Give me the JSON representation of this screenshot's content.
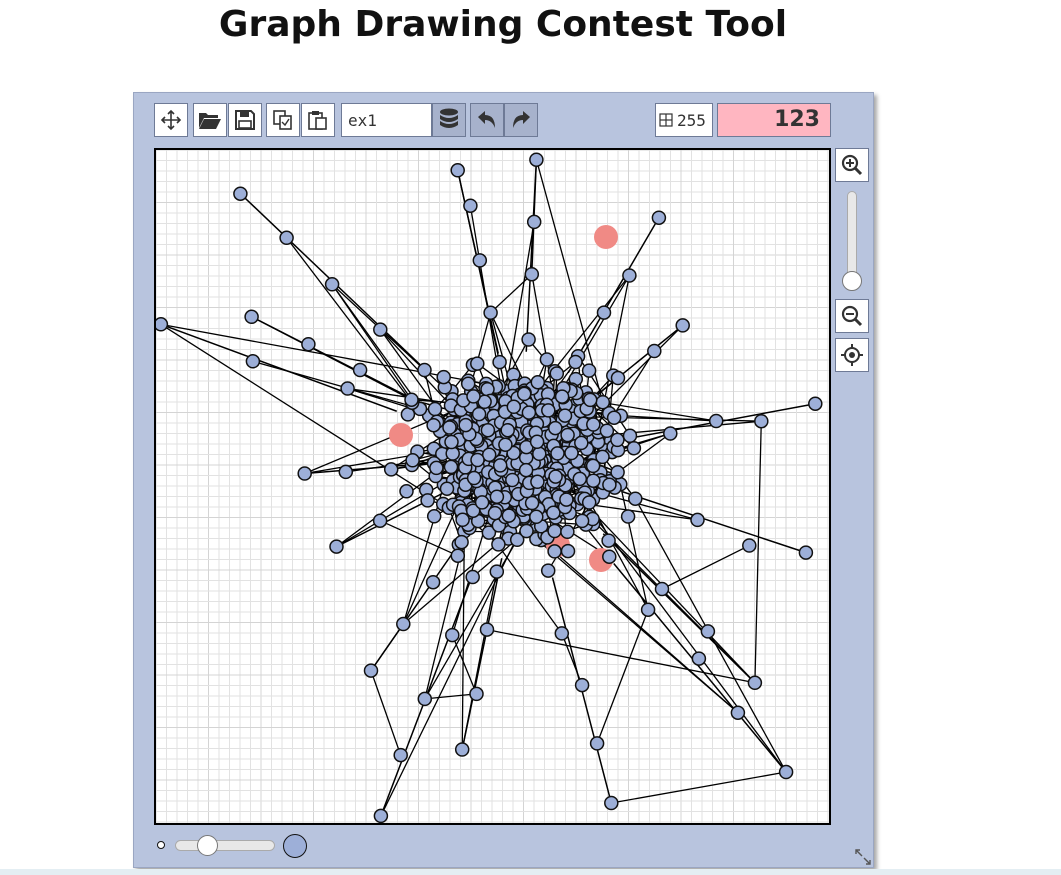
{
  "page": {
    "title": "Graph Drawing Contest Tool"
  },
  "toolbar": {
    "move_icon": "move-arrows-icon",
    "open_icon": "folder-open-icon",
    "save_icon": "floppy-disk-icon",
    "copy_icon": "copy-icon",
    "paste_icon": "paste-icon",
    "instance_name": "ex1",
    "database_icon": "database-icon",
    "undo_icon": "undo-icon",
    "redo_icon": "redo-icon",
    "grid_icon": "grid-icon",
    "grid_size": "255",
    "score": "123"
  },
  "side_controls": {
    "zoom_in_icon": "zoom-in-icon",
    "zoom_out_icon": "zoom-out-icon",
    "center_icon": "target-icon",
    "zoom_level_fraction": 0.15
  },
  "bottom_controls": {
    "node_size_fraction": 0.3,
    "resize_icon": "resize-corner-icon"
  },
  "colors": {
    "panel_bg": "#b8c4de",
    "node_fill": "#9dafd8",
    "node_stroke": "#111111",
    "highlight": "#f08a85",
    "score_bg": "#ffb6c1",
    "grid_line": "#e2e2e2"
  }
}
